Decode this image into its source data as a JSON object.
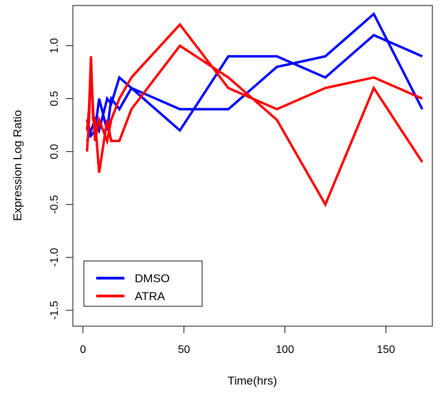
{
  "chart_data": {
    "type": "line",
    "xlabel": "Time(hrs)",
    "ylabel": "Expression Log Ratio",
    "xlim": [
      -5,
      173
    ],
    "ylim": [
      -1.65,
      1.38
    ],
    "x_ticks": [
      0,
      50,
      100,
      150
    ],
    "y_ticks": [
      -1.5,
      -1.0,
      -0.5,
      0.0,
      0.5,
      1.0
    ],
    "y_tick_labels": [
      "-1.5",
      "-1.0",
      "-0.5",
      "0.0",
      "0.5",
      "1.0"
    ],
    "grid": false,
    "legend": {
      "position": "bottom-left",
      "entries": [
        "DMSO",
        "ATRA"
      ]
    },
    "colors": {
      "DMSO": "#0000ff",
      "ATRA": "#ff0000"
    },
    "series": [
      {
        "name": "DMSO",
        "color": "#0000ff",
        "x": [
          2,
          4,
          6,
          8,
          12,
          14,
          18,
          24,
          48,
          72,
          96,
          120,
          144,
          168
        ],
        "y": [
          0.3,
          0.15,
          0.2,
          0.5,
          0.2,
          0.5,
          0.4,
          0.6,
          0.4,
          0.4,
          0.8,
          0.9,
          1.3,
          0.4
        ]
      },
      {
        "name": "DMSO",
        "color": "#0000ff",
        "x": [
          2,
          4,
          6,
          8,
          12,
          14,
          18,
          24,
          48,
          72,
          96,
          120,
          144,
          168
        ],
        "y": [
          0.1,
          0.2,
          0.3,
          0.2,
          0.5,
          0.45,
          0.7,
          0.6,
          0.2,
          0.9,
          0.9,
          0.7,
          1.1,
          0.9
        ]
      },
      {
        "name": "ATRA",
        "color": "#ff0000",
        "x": [
          2,
          3,
          4,
          5,
          6,
          8,
          12,
          14,
          18,
          24,
          48,
          72,
          96,
          120,
          144,
          168
        ],
        "y": [
          0.2,
          0.4,
          0.9,
          0.3,
          0.3,
          -0.2,
          0.3,
          0.1,
          0.1,
          0.4,
          1.0,
          0.7,
          0.3,
          -0.5,
          0.6,
          -0.1
        ]
      },
      {
        "name": "ATRA",
        "color": "#ff0000",
        "x": [
          2,
          3,
          4,
          5,
          6,
          8,
          12,
          14,
          18,
          24,
          48,
          72,
          96,
          120,
          144,
          168
        ],
        "y": [
          0.0,
          0.3,
          0.8,
          0.4,
          0.1,
          0.3,
          0.1,
          0.3,
          0.5,
          0.7,
          1.2,
          0.6,
          0.4,
          0.6,
          0.7,
          0.5
        ]
      }
    ]
  }
}
